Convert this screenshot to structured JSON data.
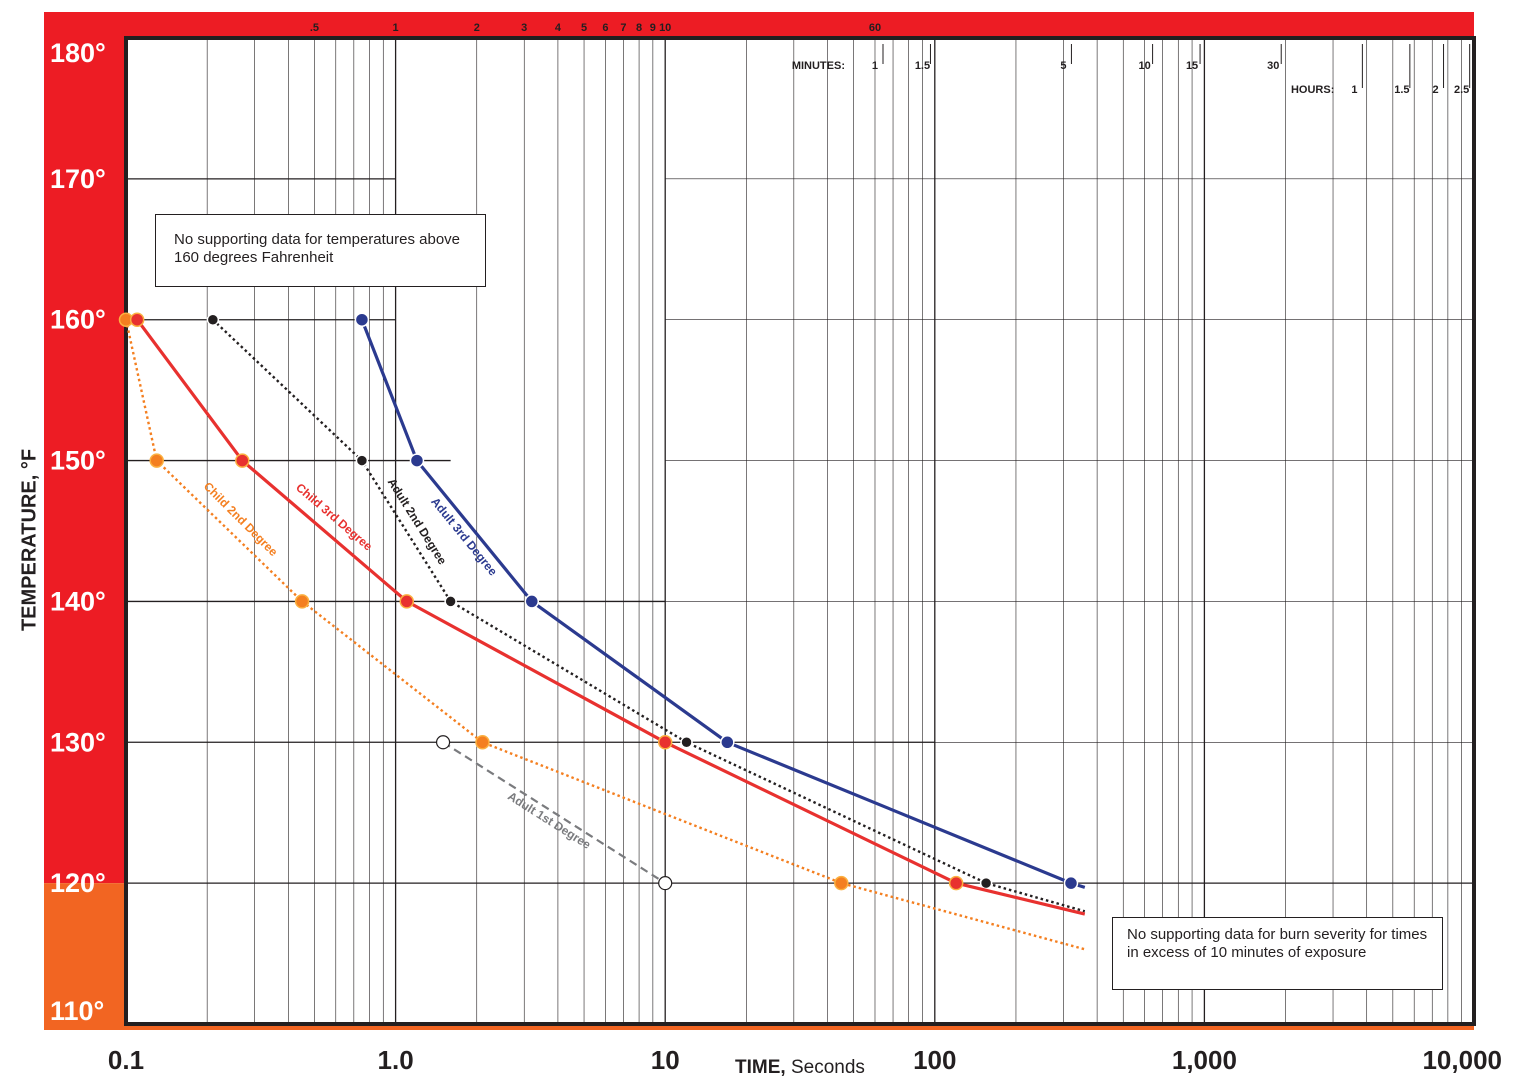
{
  "chart_data": {
    "type": "line",
    "title": "",
    "xlabel": {
      "bold": "TIME,",
      "normal": "Seconds"
    },
    "ylabel": "TEMPERATURE, °F",
    "x_scale": "log",
    "xlim": [
      0.1,
      10000
    ],
    "ylim": [
      110,
      180
    ],
    "x_tick_labels": [
      {
        "value": 0.1,
        "label": "0.1"
      },
      {
        "value": 1,
        "label": "1.0"
      },
      {
        "value": 10,
        "label": "10"
      },
      {
        "value": 100,
        "label": "100"
      },
      {
        "value": 1000,
        "label": "1,000"
      },
      {
        "value": 10000,
        "label": "10,000"
      }
    ],
    "y_tick_labels": [
      {
        "value": 110,
        "label": "110°"
      },
      {
        "value": 120,
        "label": "120°"
      },
      {
        "value": 130,
        "label": "130°"
      },
      {
        "value": 140,
        "label": "140°"
      },
      {
        "value": 150,
        "label": "150°"
      },
      {
        "value": 160,
        "label": "160°"
      },
      {
        "value": 170,
        "label": "170°"
      },
      {
        "value": 180,
        "label": "180°"
      }
    ],
    "top_scale_labels": [
      {
        "value": 0.5,
        "label": ".5"
      },
      {
        "value": 1,
        "label": "1"
      },
      {
        "value": 2,
        "label": "2"
      },
      {
        "value": 3,
        "label": "3"
      },
      {
        "value": 4,
        "label": "4"
      },
      {
        "value": 5,
        "label": "5"
      },
      {
        "value": 6,
        "label": "6"
      },
      {
        "value": 7,
        "label": "7"
      },
      {
        "value": 8,
        "label": "8"
      },
      {
        "value": 9,
        "label": "9"
      },
      {
        "value": 10,
        "label": "10"
      },
      {
        "value": 60,
        "label": "60"
      }
    ],
    "minutes_caption": "MINUTES:",
    "minutes_ticks": [
      {
        "value": 60,
        "label": "1"
      },
      {
        "value": 90,
        "label": "1.5"
      },
      {
        "value": 300,
        "label": "5"
      },
      {
        "value": 600,
        "label": "10"
      },
      {
        "value": 900,
        "label": "15"
      },
      {
        "value": 1800,
        "label": "30"
      }
    ],
    "hours_caption": "HOURS:",
    "hours_ticks": [
      {
        "value": 3600,
        "label": "1"
      },
      {
        "value": 5400,
        "label": "1.5"
      },
      {
        "value": 7200,
        "label": "2"
      },
      {
        "value": 9000,
        "label": "2.5"
      }
    ],
    "series": [
      {
        "name": "Adult 1st Degree",
        "color": "#7a7b7e",
        "style": "dashed",
        "marker_fill": "#ffffff",
        "points": [
          {
            "x": 1.5,
            "y": 130
          },
          {
            "x": 10,
            "y": 120
          }
        ]
      },
      {
        "name": "Adult 2nd Degree",
        "color": "#231f20",
        "style": "dotted",
        "marker_fill": "#231f20",
        "points": [
          {
            "x": 0.21,
            "y": 160
          },
          {
            "x": 0.75,
            "y": 150
          },
          {
            "x": 1.6,
            "y": 140
          },
          {
            "x": 12,
            "y": 130
          },
          {
            "x": 155,
            "y": 120
          },
          {
            "x": 360,
            "y": 118
          }
        ]
      },
      {
        "name": "Adult 3rd Degree",
        "color": "#2b3a8f",
        "style": "solid",
        "marker_fill": "#2b3a8f",
        "points": [
          {
            "x": 0.75,
            "y": 160
          },
          {
            "x": 1.2,
            "y": 150
          },
          {
            "x": 3.2,
            "y": 140
          },
          {
            "x": 17,
            "y": 130
          },
          {
            "x": 320,
            "y": 120
          },
          {
            "x": 360,
            "y": 119.7
          }
        ]
      },
      {
        "name": "Child 2nd Degree",
        "color": "#f47f20",
        "style": "dotted",
        "marker_fill": "#f47f20",
        "points": [
          {
            "x": 0.1,
            "y": 160
          },
          {
            "x": 0.13,
            "y": 150
          },
          {
            "x": 0.45,
            "y": 140
          },
          {
            "x": 2.1,
            "y": 130
          },
          {
            "x": 45,
            "y": 120
          },
          {
            "x": 360,
            "y": 115.3
          }
        ]
      },
      {
        "name": "Child 3rd Degree",
        "color": "#e8312f",
        "style": "solid",
        "marker_fill": "#e8312f",
        "points": [
          {
            "x": 0.11,
            "y": 160
          },
          {
            "x": 0.27,
            "y": 150
          },
          {
            "x": 1.1,
            "y": 140
          },
          {
            "x": 10,
            "y": 130
          },
          {
            "x": 120,
            "y": 120
          },
          {
            "x": 360,
            "y": 117.8
          }
        ]
      }
    ],
    "annotations": [
      {
        "id": "no-data-temp",
        "text": "No supporting data for temperatures above 160 degrees Fahrenheit"
      },
      {
        "id": "no-data-time",
        "text": "No supporting data for burn severity for times in excess of 10 minutes of exposure"
      }
    ],
    "grid": true,
    "legend": "none (series labels placed along lines)",
    "colors": {
      "red_band": "#ed1c24",
      "orange_band": "#f26522",
      "grid": "#231f20",
      "frame": "#231f20"
    }
  }
}
